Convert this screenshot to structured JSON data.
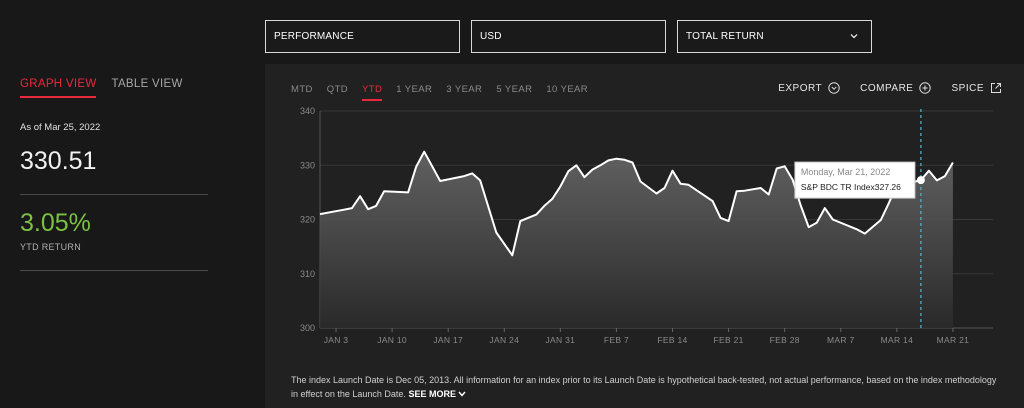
{
  "filters": {
    "metric": "PERFORMANCE",
    "currency": "USD",
    "return_type": "TOTAL RETURN"
  },
  "view_tabs": [
    "GRAPH VIEW",
    "TABLE VIEW"
  ],
  "summary": {
    "as_of": "As of Mar 25, 2022",
    "value": "330.51",
    "ytd_return": "3.05%",
    "ytd_label": "YTD RETURN"
  },
  "ranges": [
    "MTD",
    "QTD",
    "YTD",
    "1 YEAR",
    "3 YEAR",
    "5 YEAR",
    "10 YEAR"
  ],
  "active_range": "YTD",
  "tools": {
    "export": "EXPORT",
    "compare": "COMPARE",
    "spice": "SPICE"
  },
  "tooltip": {
    "date": "Monday, Mar 21, 2022",
    "label": "S&P BDC TR Index:",
    "value": "327.26"
  },
  "footnote": {
    "text": "The index Launch Date is Dec 05, 2013. All information for an index prior to its Launch Date is hypothetical back-tested, not actual performance, based on the index methodology in effect on the Launch Date.",
    "see_more": "SEE MORE"
  },
  "colors": {
    "accent": "#e8293c",
    "positive": "#7bc142",
    "line": "#ffffff",
    "crosshair": "#5ab4d6"
  },
  "chart_data": {
    "type": "area",
    "ylim": [
      300,
      340
    ],
    "yticks": [
      300,
      310,
      320,
      330,
      340
    ],
    "xticks": [
      "JAN 3",
      "JAN 10",
      "JAN 17",
      "JAN 24",
      "JAN 31",
      "FEB 7",
      "FEB 14",
      "FEB 21",
      "FEB 28",
      "MAR 7",
      "MAR 14",
      "MAR 21"
    ],
    "xlim_days": [
      0,
      84
    ],
    "series": [
      {
        "points": [
          [
            0,
            321
          ],
          [
            3,
            321.8
          ],
          [
            4,
            322.1
          ],
          [
            5,
            324.3
          ],
          [
            6,
            321.9
          ],
          [
            7,
            322.5
          ],
          [
            8,
            325.2
          ],
          [
            11,
            325.0
          ],
          [
            12,
            329.7
          ],
          [
            13,
            332.5
          ],
          [
            14,
            329.8
          ],
          [
            15,
            327.1
          ],
          [
            18,
            328.0
          ],
          [
            19,
            328.5
          ],
          [
            20,
            327.2
          ],
          [
            22,
            317.6
          ],
          [
            24,
            313.4
          ],
          [
            25,
            319.7
          ],
          [
            27,
            320.9
          ],
          [
            28,
            322.5
          ],
          [
            29,
            323.8
          ],
          [
            30,
            326.1
          ],
          [
            31,
            328.9
          ],
          [
            32,
            330.0
          ],
          [
            33,
            327.8
          ],
          [
            34,
            329.2
          ],
          [
            35,
            330.0
          ],
          [
            36,
            330.9
          ],
          [
            37,
            331.2
          ],
          [
            38,
            331.0
          ],
          [
            39,
            330.5
          ],
          [
            40,
            327.0
          ],
          [
            42,
            324.8
          ],
          [
            43,
            325.8
          ],
          [
            44,
            329.0
          ],
          [
            45,
            326.6
          ],
          [
            46,
            326.4
          ],
          [
            49,
            323.4
          ],
          [
            50,
            320.3
          ],
          [
            51,
            319.7
          ],
          [
            52,
            325.2
          ],
          [
            53,
            325.3
          ],
          [
            55,
            325.8
          ],
          [
            56,
            324.6
          ],
          [
            57,
            329.4
          ],
          [
            58,
            329.8
          ],
          [
            59,
            327.3
          ],
          [
            60,
            322.6
          ],
          [
            61,
            318.6
          ],
          [
            62,
            319.4
          ],
          [
            63,
            322.1
          ],
          [
            64,
            320.0
          ],
          [
            67,
            318.2
          ],
          [
            68,
            317.4
          ],
          [
            70,
            319.9
          ],
          [
            71,
            323.0
          ],
          [
            72,
            326.5
          ],
          [
            73,
            327.6
          ],
          [
            74,
            326.9
          ],
          [
            75,
            327.26
          ],
          [
            76,
            329.0
          ],
          [
            77,
            327.2
          ],
          [
            78,
            328.0
          ],
          [
            79,
            330.51
          ]
        ]
      }
    ],
    "highlight_day": 75
  }
}
